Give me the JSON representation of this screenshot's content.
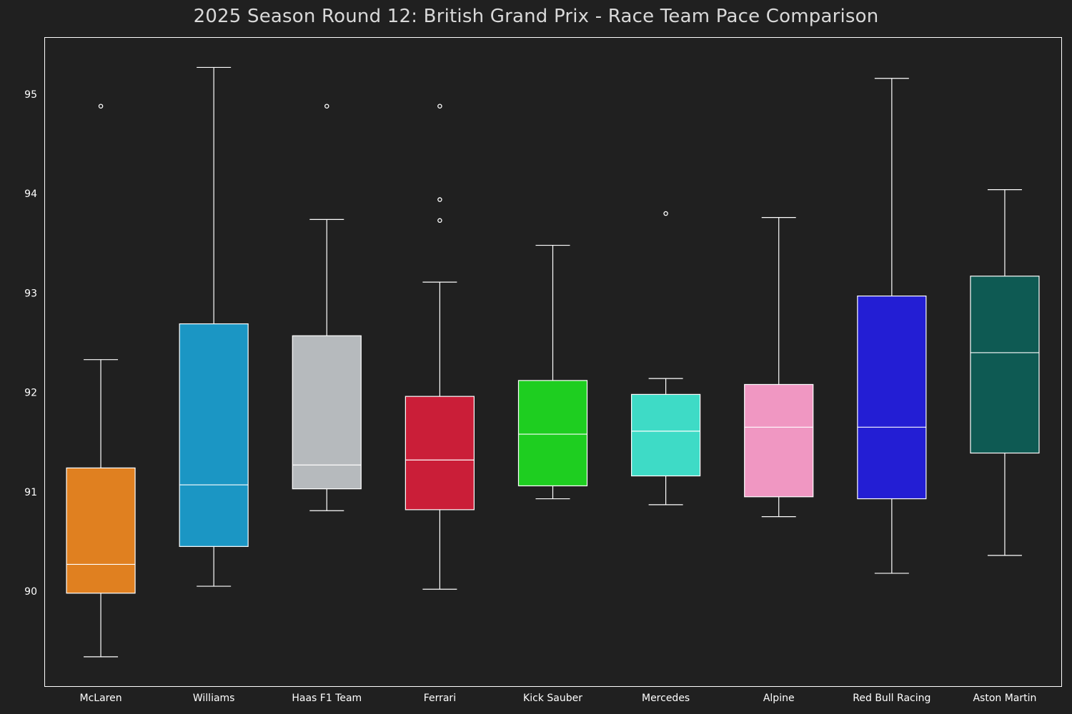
{
  "chart_data": {
    "type": "box",
    "title": "2025 Season Round 12: British Grand Prix - Race Team Pace Comparison",
    "xlabel": "",
    "ylabel": "",
    "ylim": [
      89.05,
      95.6
    ],
    "yticks": [
      90,
      91,
      92,
      93,
      94,
      95
    ],
    "grid": false,
    "legend": "none",
    "categories": [
      "McLaren",
      "Williams",
      "Haas F1 Team",
      "Ferrari",
      "Kick Sauber",
      "Mercedes",
      "Alpine",
      "Red Bull Racing",
      "Aston Martin"
    ],
    "boxes": [
      {
        "name": "McLaren",
        "color": "#e08020",
        "whisker_low": 89.34,
        "q1": 89.98,
        "median": 90.27,
        "q3": 91.24,
        "whisker_high": 92.33,
        "outliers": [
          94.88
        ]
      },
      {
        "name": "Williams",
        "color": "#1b96c4",
        "whisker_low": 90.05,
        "q1": 90.45,
        "median": 91.07,
        "q3": 92.69,
        "whisker_high": 95.27,
        "outliers": []
      },
      {
        "name": "Haas F1 Team",
        "color": "#b6babd",
        "whisker_low": 90.81,
        "q1": 91.03,
        "median": 91.27,
        "q3": 92.57,
        "whisker_high": 93.74,
        "outliers": [
          94.88
        ]
      },
      {
        "name": "Ferrari",
        "color": "#ca1e38",
        "whisker_low": 90.02,
        "q1": 90.82,
        "median": 91.32,
        "q3": 91.96,
        "whisker_high": 93.11,
        "outliers": [
          93.73,
          93.94,
          94.88
        ]
      },
      {
        "name": "Kick Sauber",
        "color": "#1ece20",
        "whisker_low": 90.93,
        "q1": 91.06,
        "median": 91.58,
        "q3": 92.12,
        "whisker_high": 93.48,
        "outliers": []
      },
      {
        "name": "Mercedes",
        "color": "#3edbc6",
        "whisker_low": 90.87,
        "q1": 91.16,
        "median": 91.61,
        "q3": 91.98,
        "whisker_high": 92.14,
        "outliers": [
          93.8
        ]
      },
      {
        "name": "Alpine",
        "color": "#f097c2",
        "whisker_low": 90.75,
        "q1": 90.95,
        "median": 91.65,
        "q3": 92.08,
        "whisker_high": 93.76,
        "outliers": []
      },
      {
        "name": "Red Bull Racing",
        "color": "#231ed4",
        "whisker_low": 90.18,
        "q1": 90.93,
        "median": 91.65,
        "q3": 92.97,
        "whisker_high": 95.16,
        "outliers": []
      },
      {
        "name": "Aston Martin",
        "color": "#0e5a53",
        "whisker_low": 90.36,
        "q1": 91.39,
        "median": 92.4,
        "q3": 93.17,
        "whisker_high": 94.04,
        "outliers": []
      }
    ]
  }
}
